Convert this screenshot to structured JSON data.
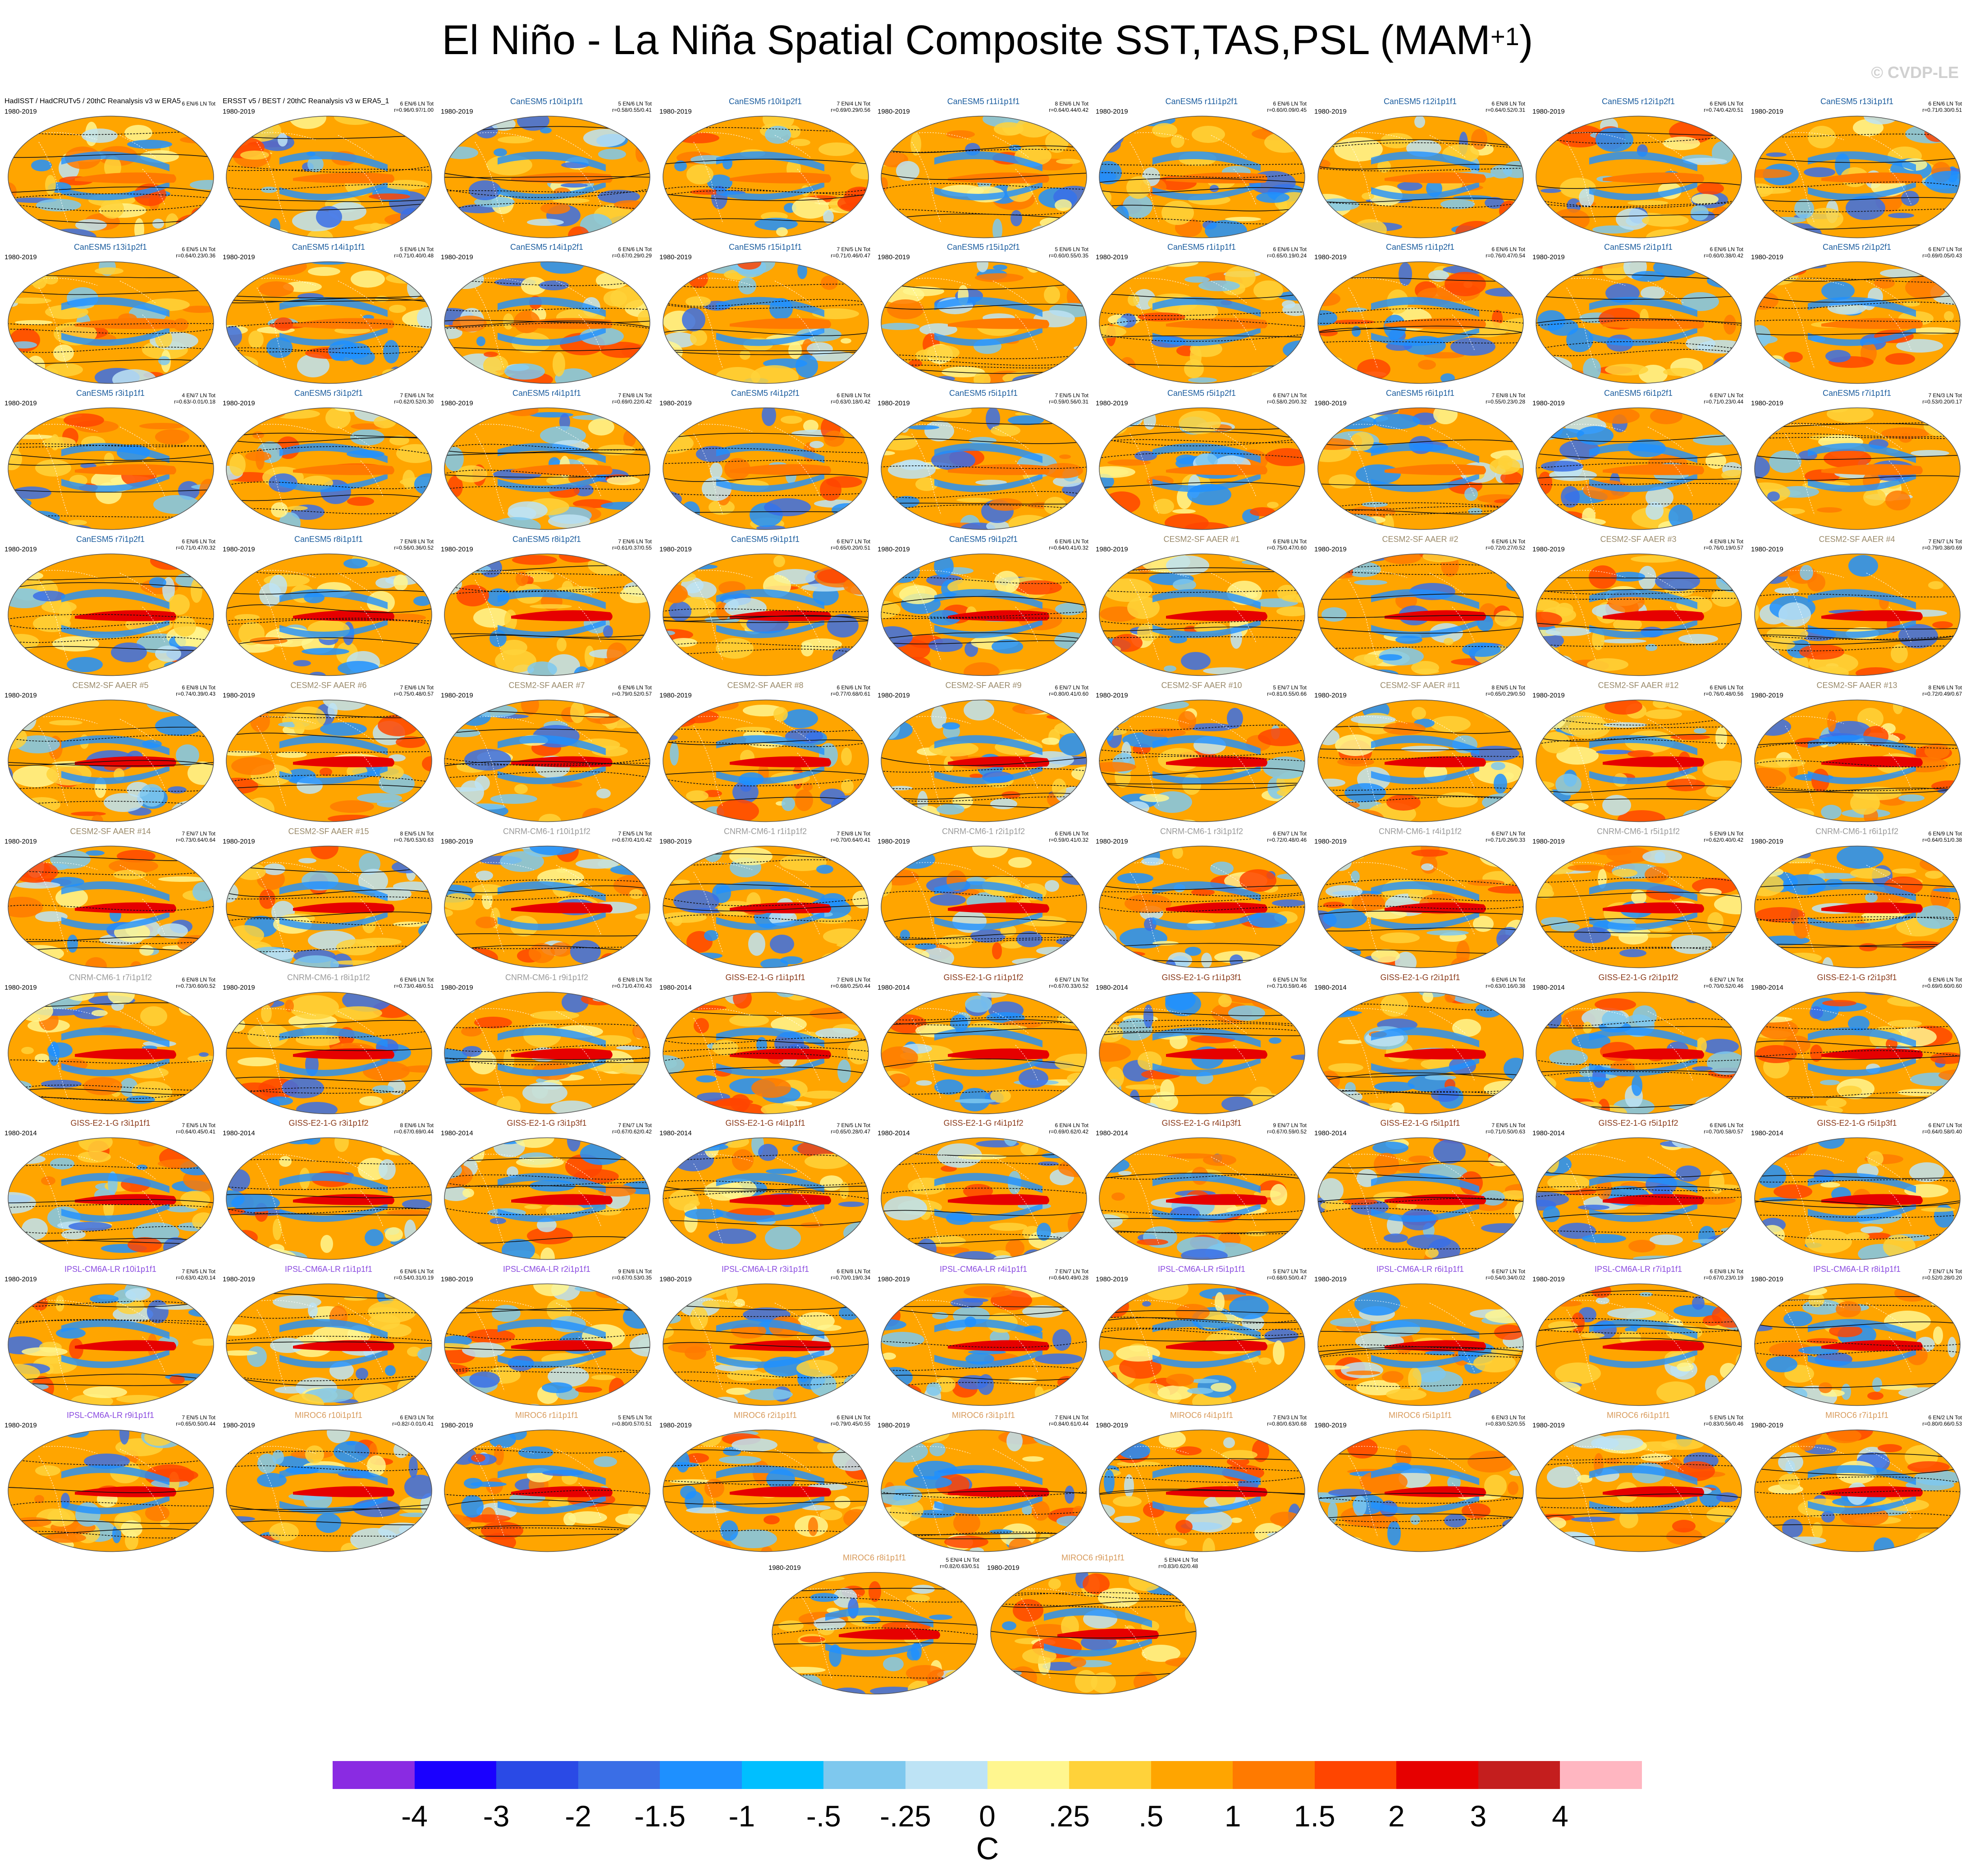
{
  "title": "El Niño - La Niña Spatial Composite SST,TAS,PSL (MAM",
  "title_sup": "+1",
  "title_end": ")",
  "watermark": "© CVDP-LE",
  "panels": [
    {
      "label": "HadISST / HadCRUTv5 / 20thC Reanalysis v3 w ERA5",
      "period": "1980-2019",
      "stats": [
        "6 EN/6 LN Tot",
        ""
      ],
      "color": "#000000"
    },
    {
      "label": "ERSST v5 / BEST / 20thC Reanalysis v3 w ERA5_1",
      "period": "1980-2019",
      "stats": [
        "6 EN/6 LN Tot",
        "r=0.96/0.97/1.00"
      ],
      "color": "#000000"
    },
    {
      "label": "CanESM5 r10i1p1f1",
      "period": "1980-2019",
      "stats": [
        "5 EN/6 LN Tot",
        "r=0.58/0.55/0.41"
      ],
      "color": "#1a5c9e"
    },
    {
      "label": "CanESM5 r10i1p2f1",
      "period": "1980-2019",
      "stats": [
        "7 EN/4 LN Tot",
        "r=0.69/0.29/0.56"
      ],
      "color": "#1a5c9e"
    },
    {
      "label": "CanESM5 r11i1p1f1",
      "period": "1980-2019",
      "stats": [
        "8 EN/6 LN Tot",
        "r=0.64/0.44/0.42"
      ],
      "color": "#1a5c9e"
    },
    {
      "label": "CanESM5 r11i1p2f1",
      "period": "1980-2019",
      "stats": [
        "6 EN/6 LN Tot",
        "r=0.60/0.09/0.45"
      ],
      "color": "#1a5c9e"
    },
    {
      "label": "CanESM5 r12i1p1f1",
      "period": "1980-2019",
      "stats": [
        "6 EN/8 LN Tot",
        "r=0.64/0.52/0.31"
      ],
      "color": "#1a5c9e"
    },
    {
      "label": "CanESM5 r12i1p2f1",
      "period": "1980-2019",
      "stats": [
        "6 EN/6 LN Tot",
        "r=0.74/0.42/0.51"
      ],
      "color": "#1a5c9e"
    },
    {
      "label": "CanESM5 r13i1p1f1",
      "period": "1980-2019",
      "stats": [
        "6 EN/6 LN Tot",
        "r=0.71/0.30/0.51"
      ],
      "color": "#1a5c9e"
    },
    {
      "label": "CanESM5 r13i1p2f1",
      "period": "1980-2019",
      "stats": [
        "6 EN/5 LN Tot",
        "r=0.64/0.23/0.36"
      ],
      "color": "#1a5c9e"
    },
    {
      "label": "CanESM5 r14i1p1f1",
      "period": "1980-2019",
      "stats": [
        "5 EN/6 LN Tot",
        "r=0.71/0.40/0.48"
      ],
      "color": "#1a5c9e"
    },
    {
      "label": "CanESM5 r14i1p2f1",
      "period": "1980-2019",
      "stats": [
        "6 EN/6 LN Tot",
        "r=0.67/0.29/0.29"
      ],
      "color": "#1a5c9e"
    },
    {
      "label": "CanESM5 r15i1p1f1",
      "period": "1980-2019",
      "stats": [
        "7 EN/5 LN Tot",
        "r=0.71/0.46/0.47"
      ],
      "color": "#1a5c9e"
    },
    {
      "label": "CanESM5 r15i1p2f1",
      "period": "1980-2019",
      "stats": [
        "5 EN/6 LN Tot",
        "r=0.60/0.55/0.35"
      ],
      "color": "#1a5c9e"
    },
    {
      "label": "CanESM5 r1i1p1f1",
      "period": "1980-2019",
      "stats": [
        "6 EN/6 LN Tot",
        "r=0.65/0.19/0.24"
      ],
      "color": "#1a5c9e"
    },
    {
      "label": "CanESM5 r1i1p2f1",
      "period": "1980-2019",
      "stats": [
        "6 EN/6 LN Tot",
        "r=0.76/0.47/0.54"
      ],
      "color": "#1a5c9e"
    },
    {
      "label": "CanESM5 r2i1p1f1",
      "period": "1980-2019",
      "stats": [
        "6 EN/6 LN Tot",
        "r=0.60/0.38/0.42"
      ],
      "color": "#1a5c9e"
    },
    {
      "label": "CanESM5 r2i1p2f1",
      "period": "1980-2019",
      "stats": [
        "6 EN/7 LN Tot",
        "r=0.69/0.05/0.43"
      ],
      "color": "#1a5c9e"
    },
    {
      "label": "CanESM5 r3i1p1f1",
      "period": "1980-2019",
      "stats": [
        "4 EN/7 LN Tot",
        "r=0.63/-0.01/0.18"
      ],
      "color": "#1a5c9e"
    },
    {
      "label": "CanESM5 r3i1p2f1",
      "period": "1980-2019",
      "stats": [
        "7 EN/6 LN Tot",
        "r=0.62/0.52/0.30"
      ],
      "color": "#1a5c9e"
    },
    {
      "label": "CanESM5 r4i1p1f1",
      "period": "1980-2019",
      "stats": [
        "7 EN/8 LN Tot",
        "r=0.69/0.22/0.42"
      ],
      "color": "#1a5c9e"
    },
    {
      "label": "CanESM5 r4i1p2f1",
      "period": "1980-2019",
      "stats": [
        "6 EN/8 LN Tot",
        "r=0.63/0.18/0.42"
      ],
      "color": "#1a5c9e"
    },
    {
      "label": "CanESM5 r5i1p1f1",
      "period": "1980-2019",
      "stats": [
        "7 EN/5 LN Tot",
        "r=0.59/0.56/0.31"
      ],
      "color": "#1a5c9e"
    },
    {
      "label": "CanESM5 r5i1p2f1",
      "period": "1980-2019",
      "stats": [
        "6 EN/7 LN Tot",
        "r=0.58/0.20/0.32"
      ],
      "color": "#1a5c9e"
    },
    {
      "label": "CanESM5 r6i1p1f1",
      "period": "1980-2019",
      "stats": [
        "7 EN/8 LN Tot",
        "r=0.55/0.23/0.28"
      ],
      "color": "#1a5c9e"
    },
    {
      "label": "CanESM5 r6i1p2f1",
      "period": "1980-2019",
      "stats": [
        "6 EN/7 LN Tot",
        "r=0.71/0.23/0.44"
      ],
      "color": "#1a5c9e"
    },
    {
      "label": "CanESM5 r7i1p1f1",
      "period": "1980-2019",
      "stats": [
        "7 EN/3 LN Tot",
        "r=0.53/0.20/0.17"
      ],
      "color": "#1a5c9e"
    },
    {
      "label": "CanESM5 r7i1p2f1",
      "period": "1980-2019",
      "stats": [
        "6 EN/6 LN Tot",
        "r=0.71/0.47/0.32"
      ],
      "color": "#1a5c9e"
    },
    {
      "label": "CanESM5 r8i1p1f1",
      "period": "1980-2019",
      "stats": [
        "7 EN/8 LN Tot",
        "r=0.56/0.36/0.52"
      ],
      "color": "#1a5c9e"
    },
    {
      "label": "CanESM5 r8i1p2f1",
      "period": "1980-2019",
      "stats": [
        "7 EN/6 LN Tot",
        "r=0.61/0.37/0.55"
      ],
      "color": "#1a5c9e"
    },
    {
      "label": "CanESM5 r9i1p1f1",
      "period": "1980-2019",
      "stats": [
        "6 EN/7 LN Tot",
        "r=0.65/0.20/0.51"
      ],
      "color": "#1a5c9e"
    },
    {
      "label": "CanESM5 r9i1p2f1",
      "period": "1980-2019",
      "stats": [
        "6 EN/6 LN Tot",
        "r=0.64/0.41/0.32"
      ],
      "color": "#1a5c9e"
    },
    {
      "label": "CESM2-SF AAER #1",
      "period": "1980-2019",
      "stats": [
        "6 EN/8 LN Tot",
        "r=0.75/0.47/0.60"
      ],
      "color": "#9a8a6a"
    },
    {
      "label": "CESM2-SF AAER #2",
      "period": "1980-2019",
      "stats": [
        "6 EN/6 LN Tot",
        "r=0.72/0.27/0.52"
      ],
      "color": "#9a8a6a"
    },
    {
      "label": "CESM2-SF AAER #3",
      "period": "1980-2019",
      "stats": [
        "4 EN/8 LN Tot",
        "r=0.76/0.19/0.57"
      ],
      "color": "#9a8a6a"
    },
    {
      "label": "CESM2-SF AAER #4",
      "period": "1980-2019",
      "stats": [
        "7 EN/7 LN Tot",
        "r=0.79/0.38/0.69"
      ],
      "color": "#9a8a6a"
    },
    {
      "label": "CESM2-SF AAER #5",
      "period": "1980-2019",
      "stats": [
        "6 EN/8 LN Tot",
        "r=0.74/0.39/0.43"
      ],
      "color": "#9a8a6a"
    },
    {
      "label": "CESM2-SF AAER #6",
      "period": "1980-2019",
      "stats": [
        "7 EN/6 LN Tot",
        "r=0.75/0.48/0.57"
      ],
      "color": "#9a8a6a"
    },
    {
      "label": "CESM2-SF AAER #7",
      "period": "1980-2019",
      "stats": [
        "6 EN/6 LN Tot",
        "r=0.79/0.52/0.57"
      ],
      "color": "#9a8a6a"
    },
    {
      "label": "CESM2-SF AAER #8",
      "period": "1980-2019",
      "stats": [
        "6 EN/6 LN Tot",
        "r=0.77/0.68/0.61"
      ],
      "color": "#9a8a6a"
    },
    {
      "label": "CESM2-SF AAER #9",
      "period": "1980-2019",
      "stats": [
        "6 EN/7 LN Tot",
        "r=0.80/0.41/0.60"
      ],
      "color": "#9a8a6a"
    },
    {
      "label": "CESM2-SF AAER #10",
      "period": "1980-2019",
      "stats": [
        "5 EN/7 LN Tot",
        "r=0.81/0.55/0.66"
      ],
      "color": "#9a8a6a"
    },
    {
      "label": "CESM2-SF AAER #11",
      "period": "1980-2019",
      "stats": [
        "8 EN/5 LN Tot",
        "r=0.65/0.29/0.50"
      ],
      "color": "#9a8a6a"
    },
    {
      "label": "CESM2-SF AAER #12",
      "period": "1980-2019",
      "stats": [
        "6 EN/6 LN Tot",
        "r=0.76/0.48/0.56"
      ],
      "color": "#9a8a6a"
    },
    {
      "label": "CESM2-SF AAER #13",
      "period": "1980-2019",
      "stats": [
        "8 EN/6 LN Tot",
        "r=0.72/0.49/0.67"
      ],
      "color": "#9a8a6a"
    },
    {
      "label": "CESM2-SF AAER #14",
      "period": "1980-2019",
      "stats": [
        "7 EN/7 LN Tot",
        "r=0.73/0.64/0.64"
      ],
      "color": "#9a8a6a"
    },
    {
      "label": "CESM2-SF AAER #15",
      "period": "1980-2019",
      "stats": [
        "8 EN/5 LN Tot",
        "r=0.76/0.53/0.63"
      ],
      "color": "#9a8a6a"
    },
    {
      "label": "CNRM-CM6-1 r10i1p1f2",
      "period": "1980-2019",
      "stats": [
        "7 EN/5 LN Tot",
        "r=0.67/0.41/0.42"
      ],
      "color": "#9a9a9a"
    },
    {
      "label": "CNRM-CM6-1 r1i1p1f2",
      "period": "1980-2019",
      "stats": [
        "7 EN/8 LN Tot",
        "r=0.70/0.64/0.41"
      ],
      "color": "#9a9a9a"
    },
    {
      "label": "CNRM-CM6-1 r2i1p1f2",
      "period": "1980-2019",
      "stats": [
        "6 EN/6 LN Tot",
        "r=0.59/0.41/0.32"
      ],
      "color": "#9a9a9a"
    },
    {
      "label": "CNRM-CM6-1 r3i1p1f2",
      "period": "1980-2019",
      "stats": [
        "6 EN/7 LN Tot",
        "r=0.72/0.48/0.46"
      ],
      "color": "#9a9a9a"
    },
    {
      "label": "CNRM-CM6-1 r4i1p1f2",
      "period": "1980-2019",
      "stats": [
        "6 EN/7 LN Tot",
        "r=0.71/0.26/0.33"
      ],
      "color": "#9a9a9a"
    },
    {
      "label": "CNRM-CM6-1 r5i1p1f2",
      "period": "1980-2019",
      "stats": [
        "5 EN/9 LN Tot",
        "r=0.62/0.40/0.42"
      ],
      "color": "#9a9a9a"
    },
    {
      "label": "CNRM-CM6-1 r6i1p1f2",
      "period": "1980-2019",
      "stats": [
        "6 EN/9 LN Tot",
        "r=0.64/0.51/0.38"
      ],
      "color": "#9a9a9a"
    },
    {
      "label": "CNRM-CM6-1 r7i1p1f2",
      "period": "1980-2019",
      "stats": [
        "6 EN/8 LN Tot",
        "r=0.73/0.60/0.52"
      ],
      "color": "#9a9a9a"
    },
    {
      "label": "CNRM-CM6-1 r8i1p1f2",
      "period": "1980-2019",
      "stats": [
        "6 EN/6 LN Tot",
        "r=0.73/0.48/0.51"
      ],
      "color": "#9a9a9a"
    },
    {
      "label": "CNRM-CM6-1 r9i1p1f2",
      "period": "1980-2019",
      "stats": [
        "6 EN/8 LN Tot",
        "r=0.71/0.47/0.43"
      ],
      "color": "#9a9a9a"
    },
    {
      "label": "GISS-E2-1-G r1i1p1f1",
      "period": "1980-2014",
      "stats": [
        "7 EN/8 LN Tot",
        "r=0.68/0.25/0.44"
      ],
      "color": "#8b3a1a"
    },
    {
      "label": "GISS-E2-1-G r1i1p1f2",
      "period": "1980-2014",
      "stats": [
        "6 EN/7 LN Tot",
        "r=0.67/0.33/0.52"
      ],
      "color": "#8b3a1a"
    },
    {
      "label": "GISS-E2-1-G r1i1p3f1",
      "period": "1980-2014",
      "stats": [
        "6 EN/5 LN Tot",
        "r=0.71/0.59/0.46"
      ],
      "color": "#8b3a1a"
    },
    {
      "label": "GISS-E2-1-G r2i1p1f1",
      "period": "1980-2014",
      "stats": [
        "6 EN/6 LN Tot",
        "r=0.63/0.16/0.38"
      ],
      "color": "#8b3a1a"
    },
    {
      "label": "GISS-E2-1-G r2i1p1f2",
      "period": "1980-2014",
      "stats": [
        "6 EN/7 LN Tot",
        "r=0.70/0.52/0.46"
      ],
      "color": "#8b3a1a"
    },
    {
      "label": "GISS-E2-1-G r2i1p3f1",
      "period": "1980-2014",
      "stats": [
        "6 EN/6 LN Tot",
        "r=0.69/0.60/0.60"
      ],
      "color": "#8b3a1a"
    },
    {
      "label": "GISS-E2-1-G r3i1p1f1",
      "period": "1980-2014",
      "stats": [
        "7 EN/5 LN Tot",
        "r=0.64/0.45/0.41"
      ],
      "color": "#8b3a1a"
    },
    {
      "label": "GISS-E2-1-G r3i1p1f2",
      "period": "1980-2014",
      "stats": [
        "8 EN/6 LN Tot",
        "r=0.67/0.69/0.44"
      ],
      "color": "#8b3a1a"
    },
    {
      "label": "GISS-E2-1-G r3i1p3f1",
      "period": "1980-2014",
      "stats": [
        "7 EN/7 LN Tot",
        "r=0.67/0.62/0.42"
      ],
      "color": "#8b3a1a"
    },
    {
      "label": "GISS-E2-1-G r4i1p1f1",
      "period": "1980-2014",
      "stats": [
        "7 EN/5 LN Tot",
        "r=0.65/0.28/0.47"
      ],
      "color": "#8b3a1a"
    },
    {
      "label": "GISS-E2-1-G r4i1p1f2",
      "period": "1980-2014",
      "stats": [
        "6 EN/4 LN Tot",
        "r=0.69/0.62/0.42"
      ],
      "color": "#8b3a1a"
    },
    {
      "label": "GISS-E2-1-G r4i1p3f1",
      "period": "1980-2014",
      "stats": [
        "9 EN/7 LN Tot",
        "r=0.67/0.59/0.52"
      ],
      "color": "#8b3a1a"
    },
    {
      "label": "GISS-E2-1-G r5i1p1f1",
      "period": "1980-2014",
      "stats": [
        "7 EN/5 LN Tot",
        "r=0.71/0.50/0.63"
      ],
      "color": "#8b3a1a"
    },
    {
      "label": "GISS-E2-1-G r5i1p1f2",
      "period": "1980-2014",
      "stats": [
        "6 EN/6 LN Tot",
        "r=0.70/0.58/0.57"
      ],
      "color": "#8b3a1a"
    },
    {
      "label": "GISS-E2-1-G r5i1p3f1",
      "period": "1980-2014",
      "stats": [
        "6 EN/7 LN Tot",
        "r=0.64/0.58/0.40"
      ],
      "color": "#8b3a1a"
    },
    {
      "label": "IPSL-CM6A-LR r10i1p1f1",
      "period": "1980-2019",
      "stats": [
        "7 EN/5 LN Tot",
        "r=0.63/0.42/0.14"
      ],
      "color": "#8a4ae0"
    },
    {
      "label": "IPSL-CM6A-LR r1i1p1f1",
      "period": "1980-2019",
      "stats": [
        "6 EN/6 LN Tot",
        "r=0.54/0.31/0.19"
      ],
      "color": "#8a4ae0"
    },
    {
      "label": "IPSL-CM6A-LR r2i1p1f1",
      "period": "1980-2019",
      "stats": [
        "9 EN/8 LN Tot",
        "r=0.67/0.53/0.35"
      ],
      "color": "#8a4ae0"
    },
    {
      "label": "IPSL-CM6A-LR r3i1p1f1",
      "period": "1980-2019",
      "stats": [
        "6 EN/8 LN Tot",
        "r=0.70/0.19/0.34"
      ],
      "color": "#8a4ae0"
    },
    {
      "label": "IPSL-CM6A-LR r4i1p1f1",
      "period": "1980-2019",
      "stats": [
        "7 EN/7 LN Tot",
        "r=0.64/0.49/0.28"
      ],
      "color": "#8a4ae0"
    },
    {
      "label": "IPSL-CM6A-LR r5i1p1f1",
      "period": "1980-2019",
      "stats": [
        "5 EN/7 LN Tot",
        "r=0.68/0.50/0.47"
      ],
      "color": "#8a4ae0"
    },
    {
      "label": "IPSL-CM6A-LR r6i1p1f1",
      "period": "1980-2019",
      "stats": [
        "6 EN/7 LN Tot",
        "r=0.54/0.34/0.02"
      ],
      "color": "#8a4ae0"
    },
    {
      "label": "IPSL-CM6A-LR r7i1p1f1",
      "period": "1980-2019",
      "stats": [
        "6 EN/8 LN Tot",
        "r=0.67/0.23/0.19"
      ],
      "color": "#8a4ae0"
    },
    {
      "label": "IPSL-CM6A-LR r8i1p1f1",
      "period": "1980-2019",
      "stats": [
        "7 EN/7 LN Tot",
        "r=0.52/0.28/0.20"
      ],
      "color": "#8a4ae0"
    },
    {
      "label": "IPSL-CM6A-LR r9i1p1f1",
      "period": "1980-2019",
      "stats": [
        "7 EN/5 LN Tot",
        "r=0.65/0.50/0.44"
      ],
      "color": "#8a4ae0"
    },
    {
      "label": "MIROC6 r10i1p1f1",
      "period": "1980-2019",
      "stats": [
        "6 EN/3 LN Tot",
        "r=0.82/-0.01/0.41"
      ],
      "color": "#d89a5a"
    },
    {
      "label": "MIROC6 r1i1p1f1",
      "period": "1980-2019",
      "stats": [
        "5 EN/5 LN Tot",
        "r=0.80/0.57/0.51"
      ],
      "color": "#d89a5a"
    },
    {
      "label": "MIROC6 r2i1p1f1",
      "period": "1980-2019",
      "stats": [
        "6 EN/4 LN Tot",
        "r=0.79/0.45/0.55"
      ],
      "color": "#d89a5a"
    },
    {
      "label": "MIROC6 r3i1p1f1",
      "period": "1980-2019",
      "stats": [
        "7 EN/4 LN Tot",
        "r=0.84/0.61/0.44"
      ],
      "color": "#d89a5a"
    },
    {
      "label": "MIROC6 r4i1p1f1",
      "period": "1980-2019",
      "stats": [
        "7 EN/3 LN Tot",
        "r=0.80/0.63/0.68"
      ],
      "color": "#d89a5a"
    },
    {
      "label": "MIROC6 r5i1p1f1",
      "period": "1980-2019",
      "stats": [
        "6 EN/3 LN Tot",
        "r=0.83/0.52/0.55"
      ],
      "color": "#d89a5a"
    },
    {
      "label": "MIROC6 r6i1p1f1",
      "period": "1980-2019",
      "stats": [
        "5 EN/5 LN Tot",
        "r=0.83/0.56/0.46"
      ],
      "color": "#d89a5a"
    },
    {
      "label": "MIROC6 r7i1p1f1",
      "period": "1980-2019",
      "stats": [
        "6 EN/2 LN Tot",
        "r=0.80/0.66/0.53"
      ],
      "color": "#d89a5a"
    },
    {
      "label": "MIROC6 r8i1p1f1",
      "period": "1980-2019",
      "stats": [
        "5 EN/4 LN Tot",
        "r=0.82/0.63/0.51"
      ],
      "color": "#d89a5a"
    },
    {
      "label": "MIROC6 r9i1p1f1",
      "period": "1980-2019",
      "stats": [
        "5 EN/4 LN Tot",
        "r=0.83/0.62/0.48"
      ],
      "color": "#d89a5a"
    }
  ],
  "colorbar": {
    "colors": [
      "#8a2be2",
      "#1a00ff",
      "#2a4ae6",
      "#3a6ee6",
      "#1e90ff",
      "#00bfff",
      "#7ec8ee",
      "#bde3f5",
      "#fff68f",
      "#ffd23a",
      "#ffa500",
      "#ff7a00",
      "#ff4500",
      "#e60000",
      "#c41e1e",
      "#ffb6c1"
    ],
    "labels": [
      "-4",
      "-3",
      "-2",
      "-1.5",
      "-1",
      "-.5",
      "-.25",
      "0",
      ".25",
      ".5",
      "1",
      "1.5",
      "2",
      "3",
      "4"
    ],
    "unit": "C"
  }
}
